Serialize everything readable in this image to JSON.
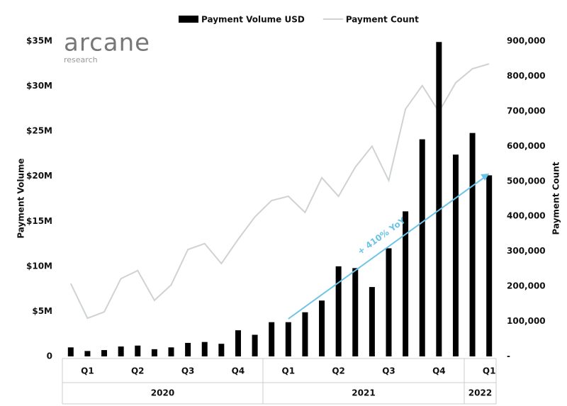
{
  "chart_data": {
    "type": "bar-line",
    "logo": "arcane",
    "logo_sub": "research",
    "y_label": "Payment Volume",
    "y2_label": "Payment Count",
    "annotation": "+ 410% YoY",
    "categories": [
      null,
      null,
      null,
      null,
      null,
      null,
      null,
      null,
      null,
      null,
      null,
      null,
      null,
      null,
      null,
      null,
      null,
      null,
      null,
      null,
      null,
      null,
      null,
      null,
      null,
      null
    ],
    "quarters": [
      "Q1",
      "Q2",
      "Q3",
      "Q4",
      "Q1",
      "Q2",
      "Q3",
      "Q4",
      "Q1"
    ],
    "years": [
      "2020",
      "2021",
      "2022"
    ],
    "series": [
      {
        "name": "Payment Volume USD",
        "color": "#000000",
        "kind": "bar",
        "values": [
          1000000,
          600000,
          700000,
          1100000,
          1200000,
          800000,
          1000000,
          1500000,
          1600000,
          1400000,
          2900000,
          2400000,
          3800000,
          3800000,
          4900000,
          6200000,
          10000000,
          9800000,
          7700000,
          12000000,
          16100000,
          24100000,
          34900000,
          22400000,
          24800000,
          20100000
        ]
      },
      {
        "name": "Payment Count",
        "color": "#cfd2d4",
        "kind": "line",
        "axis": "y2",
        "values": [
          208000,
          109000,
          127000,
          222000,
          245000,
          160000,
          204000,
          305000,
          322000,
          265000,
          334000,
          398000,
          445000,
          457000,
          411000,
          510000,
          457000,
          540000,
          600000,
          502000,
          706000,
          773000,
          698000,
          781000,
          821000,
          835000
        ]
      }
    ],
    "ylim": [
      0,
      35000000
    ],
    "yticks": [
      {
        "value": 0,
        "label": "0"
      },
      {
        "value": 5000000,
        "label": "$5M"
      },
      {
        "value": 10000000,
        "label": "$10M"
      },
      {
        "value": 15000000,
        "label": "$15M"
      },
      {
        "value": 20000000,
        "label": "$20M"
      },
      {
        "value": 25000000,
        "label": "$25M"
      },
      {
        "value": 30000000,
        "label": "$30M"
      },
      {
        "value": 35000000,
        "label": "$35M"
      }
    ],
    "y2lim": [
      0,
      900000
    ],
    "y2ticks": [
      {
        "value": 0,
        "label": "-"
      },
      {
        "value": 100000,
        "label": "100,000"
      },
      {
        "value": 200000,
        "label": "200,000"
      },
      {
        "value": 300000,
        "label": "300,000"
      },
      {
        "value": 400000,
        "label": "400,000"
      },
      {
        "value": 500000,
        "label": "500,000"
      },
      {
        "value": 600000,
        "label": "600,000"
      },
      {
        "value": 700000,
        "label": "700,000"
      },
      {
        "value": 800000,
        "label": "800,000"
      },
      {
        "value": 900000,
        "label": "900,000"
      }
    ],
    "grid": false
  }
}
